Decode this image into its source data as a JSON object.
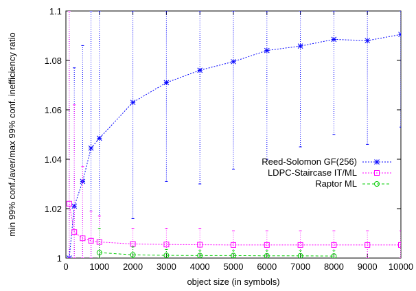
{
  "chart_data": {
    "type": "line",
    "title": "",
    "xlabel": "object size (in symbols)",
    "ylabel": "min 99% conf./aver/max 99% conf. inefficiency ratio",
    "xlim": [
      0,
      10000
    ],
    "ylim": [
      1,
      1.1
    ],
    "x_ticks": [
      0,
      1000,
      2000,
      3000,
      4000,
      5000,
      6000,
      7000,
      8000,
      9000,
      10000
    ],
    "y_ticks": [
      1,
      1.02,
      1.04,
      1.06,
      1.08,
      1.1
    ],
    "x_tick_labels": [
      "0",
      "1000",
      "2000",
      "3000",
      "4000",
      "5000",
      "6000",
      "7000",
      "8000",
      "9000",
      "10000"
    ],
    "y_tick_labels": [
      "1",
      "1.02",
      "1.04",
      "1.06",
      "1.08",
      "1.1"
    ],
    "grid": false,
    "legend_position": "middle-right",
    "series": [
      {
        "name": "Reed-Solomon GF(256)",
        "color": "#0000ff",
        "marker": "star",
        "x": [
          100,
          250,
          500,
          750,
          1000,
          2000,
          3000,
          4000,
          5000,
          6000,
          7000,
          8000,
          9000,
          10000
        ],
        "y": [
          1.0,
          1.021,
          1.031,
          1.0445,
          1.0485,
          1.063,
          1.071,
          1.076,
          1.0795,
          1.084,
          1.0858,
          1.0885,
          1.088,
          1.0905
        ],
        "y_min": [
          1.0,
          1.0,
          1.0,
          1.0,
          1.0,
          1.016,
          1.031,
          1.03,
          1.036,
          1.04,
          1.045,
          1.05,
          1.046,
          1.053
        ],
        "y_max": [
          1.1,
          1.077,
          1.086,
          1.1,
          1.1,
          1.1,
          1.1,
          1.1,
          1.1,
          1.1,
          1.1,
          1.1,
          1.1,
          1.1
        ]
      },
      {
        "name": "LDPC-Staircase IT/ML",
        "color": "#ff00ff",
        "marker": "square",
        "x": [
          100,
          250,
          500,
          750,
          1000,
          2000,
          3000,
          4000,
          5000,
          6000,
          7000,
          8000,
          9000,
          10000
        ],
        "y": [
          1.022,
          1.0105,
          1.008,
          1.007,
          1.0065,
          1.0057,
          1.0055,
          1.0054,
          1.0053,
          1.0053,
          1.0053,
          1.0053,
          1.0053,
          1.0053
        ],
        "y_min": [
          1.0,
          1.0,
          1.0,
          1.0,
          1.0,
          1.0,
          1.0,
          1.0,
          1.0,
          1.0,
          1.0,
          1.0,
          1.0,
          1.0
        ],
        "y_max": [
          1.1,
          1.062,
          1.037,
          1.019,
          1.017,
          1.012,
          1.012,
          1.012,
          1.011,
          1.011,
          1.011,
          1.011,
          1.011,
          1.011
        ]
      },
      {
        "name": "Raptor ML",
        "color": "#00cc00",
        "marker": "circle",
        "x": [
          1000,
          2000,
          3000,
          4000,
          5000,
          6000,
          7000,
          8000
        ],
        "y": [
          1.0022,
          1.0013,
          1.0011,
          1.001,
          1.001,
          1.0009,
          1.0009,
          1.0008
        ],
        "y_min": [
          1.0,
          1.0,
          1.0,
          1.0,
          1.0,
          1.0,
          1.0,
          1.0
        ],
        "y_max": [
          1.012,
          1.0045,
          1.0035,
          1.003,
          1.003,
          1.003,
          1.003,
          1.003
        ]
      }
    ]
  }
}
